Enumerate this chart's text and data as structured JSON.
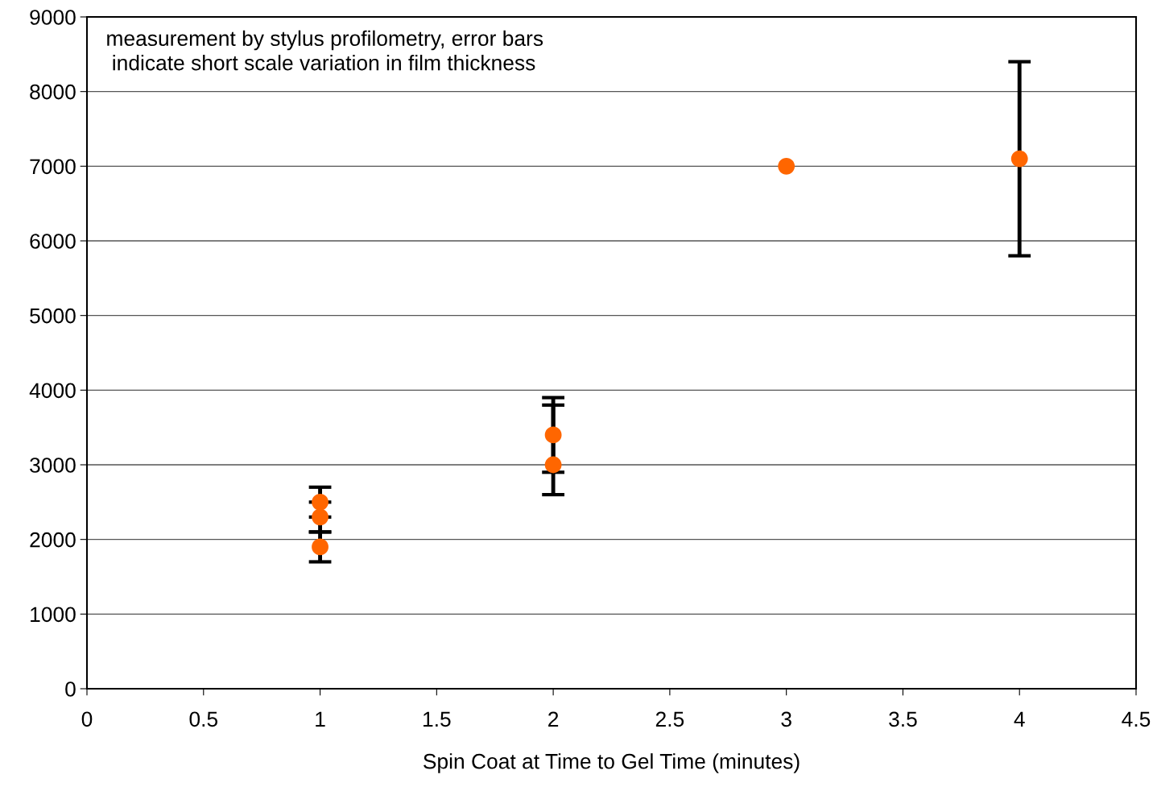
{
  "chart_data": {
    "type": "scatter",
    "x": [
      1,
      1,
      1,
      2,
      2,
      3,
      4
    ],
    "series": [
      {
        "color": "#ff6600",
        "values": [
          2500,
          2300,
          1900,
          3400,
          3000,
          7000,
          7100
        ],
        "errors": [
          [
            2500,
            2700
          ],
          [
            2100,
            2300
          ],
          [
            1700,
            2100
          ],
          [
            2900,
            3900
          ],
          [
            2600,
            3800
          ],
          null,
          [
            5800,
            8400
          ]
        ]
      }
    ],
    "xlabel": "Spin Coat at Time to Gel Time (minutes)",
    "annotations": [
      "measurement by stylus profilometry, error bars\n indicate short scale variation in film thickness"
    ],
    "xlim": [
      0,
      4.5
    ],
    "xticks": [
      0,
      0.5,
      1,
      1.5,
      2,
      2.5,
      3,
      3.5,
      4,
      4.5
    ],
    "ylim": [
      0,
      9000
    ],
    "yticks": [
      0,
      1000,
      2000,
      3000,
      4000,
      5000,
      6000,
      7000,
      8000,
      9000
    ],
    "grid": "y",
    "marker": "circle",
    "legend": false
  }
}
